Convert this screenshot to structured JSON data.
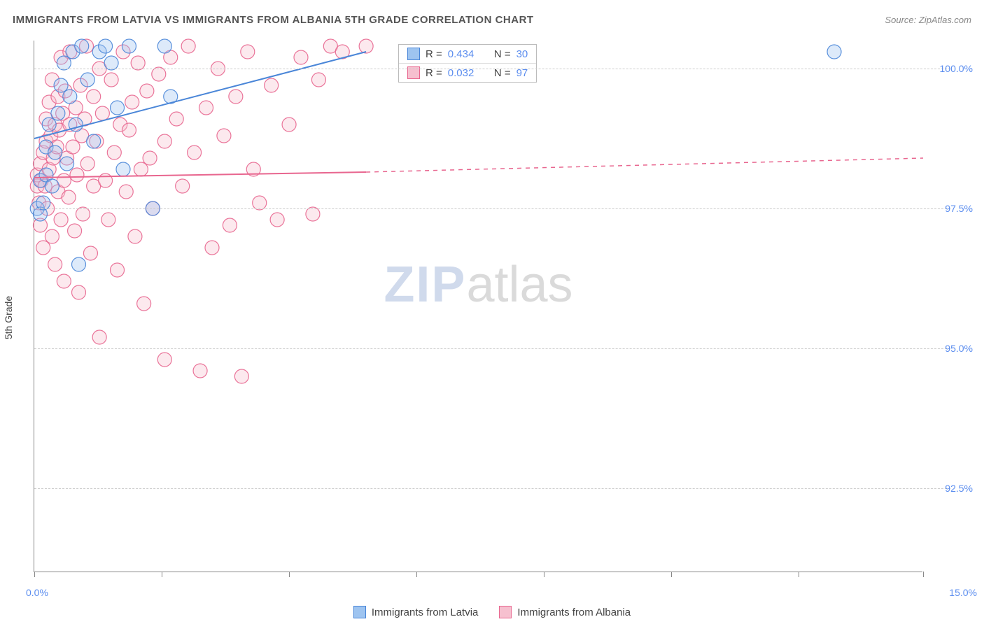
{
  "title": "IMMIGRANTS FROM LATVIA VS IMMIGRANTS FROM ALBANIA 5TH GRADE CORRELATION CHART",
  "source_prefix": "Source: ",
  "source_name": "ZipAtlas.com",
  "ylabel": "5th Grade",
  "watermark_bold": "ZIP",
  "watermark_light": "atlas",
  "chart": {
    "type": "scatter-with-regression",
    "xlim": [
      0.0,
      15.0
    ],
    "ylim": [
      91.0,
      100.5
    ],
    "background_color": "#ffffff",
    "grid_color": "#cccccc",
    "axis_color": "#888888",
    "yticks": [
      92.5,
      95.0,
      97.5,
      100.0
    ],
    "ytick_labels": [
      "92.5%",
      "95.0%",
      "97.5%",
      "100.0%"
    ],
    "ytick_color": "#5b8def",
    "xtick_positions": [
      0,
      2.15,
      4.3,
      6.45,
      8.6,
      10.75,
      12.9,
      15.0
    ],
    "xlabel_min": "0.0%",
    "xlabel_max": "15.0%",
    "xlabel_color": "#5b8def",
    "marker_radius": 10,
    "marker_fill_opacity": 0.35,
    "marker_stroke_opacity": 0.9,
    "marker_stroke_width": 1.2,
    "regression_line_width": 2
  },
  "series": {
    "latvia": {
      "label": "Immigrants from Latvia",
      "color_fill": "#9ec4f0",
      "color_stroke": "#4a86d8",
      "R": "0.434",
      "N": "30",
      "regression": {
        "x0": 0.0,
        "y0": 98.75,
        "x1": 5.6,
        "y1": 100.3,
        "dash_after_x": 15.0
      },
      "points": [
        [
          0.05,
          97.5
        ],
        [
          0.1,
          97.4
        ],
        [
          0.1,
          98.0
        ],
        [
          0.15,
          97.6
        ],
        [
          0.2,
          98.1
        ],
        [
          0.2,
          98.6
        ],
        [
          0.25,
          99.0
        ],
        [
          0.3,
          97.9
        ],
        [
          0.35,
          98.5
        ],
        [
          0.4,
          99.2
        ],
        [
          0.45,
          99.7
        ],
        [
          0.5,
          100.1
        ],
        [
          0.55,
          98.3
        ],
        [
          0.6,
          99.5
        ],
        [
          0.65,
          100.3
        ],
        [
          0.7,
          99.0
        ],
        [
          0.75,
          96.5
        ],
        [
          0.8,
          100.4
        ],
        [
          0.9,
          99.8
        ],
        [
          1.0,
          98.7
        ],
        [
          1.1,
          100.3
        ],
        [
          1.2,
          100.4
        ],
        [
          1.3,
          100.1
        ],
        [
          1.4,
          99.3
        ],
        [
          1.5,
          98.2
        ],
        [
          1.6,
          100.4
        ],
        [
          2.0,
          97.5
        ],
        [
          2.2,
          100.4
        ],
        [
          2.3,
          99.5
        ],
        [
          13.5,
          100.3
        ]
      ]
    },
    "albania": {
      "label": "Immigrants from Albania",
      "color_fill": "#f6c0cf",
      "color_stroke": "#e8668f",
      "R": "0.032",
      "N": "97",
      "regression": {
        "x0": 0.0,
        "y0": 98.05,
        "x1": 5.6,
        "y1": 98.15,
        "dash_after_x": 15.0,
        "dash_y_end": 98.4
      },
      "points": [
        [
          0.05,
          97.9
        ],
        [
          0.05,
          98.1
        ],
        [
          0.08,
          97.6
        ],
        [
          0.1,
          98.3
        ],
        [
          0.1,
          97.2
        ],
        [
          0.12,
          98.0
        ],
        [
          0.15,
          98.5
        ],
        [
          0.15,
          96.8
        ],
        [
          0.18,
          97.9
        ],
        [
          0.2,
          98.7
        ],
        [
          0.2,
          99.1
        ],
        [
          0.22,
          97.5
        ],
        [
          0.25,
          98.2
        ],
        [
          0.25,
          99.4
        ],
        [
          0.28,
          98.8
        ],
        [
          0.3,
          97.0
        ],
        [
          0.3,
          99.8
        ],
        [
          0.32,
          98.4
        ],
        [
          0.35,
          99.0
        ],
        [
          0.35,
          96.5
        ],
        [
          0.38,
          98.6
        ],
        [
          0.4,
          99.5
        ],
        [
          0.4,
          97.8
        ],
        [
          0.42,
          98.9
        ],
        [
          0.45,
          100.2
        ],
        [
          0.45,
          97.3
        ],
        [
          0.48,
          99.2
        ],
        [
          0.5,
          98.0
        ],
        [
          0.5,
          96.2
        ],
        [
          0.52,
          99.6
        ],
        [
          0.55,
          98.4
        ],
        [
          0.58,
          97.7
        ],
        [
          0.6,
          99.0
        ],
        [
          0.6,
          100.3
        ],
        [
          0.65,
          98.6
        ],
        [
          0.68,
          97.1
        ],
        [
          0.7,
          99.3
        ],
        [
          0.72,
          98.1
        ],
        [
          0.75,
          96.0
        ],
        [
          0.78,
          99.7
        ],
        [
          0.8,
          98.8
        ],
        [
          0.82,
          97.4
        ],
        [
          0.85,
          99.1
        ],
        [
          0.88,
          100.4
        ],
        [
          0.9,
          98.3
        ],
        [
          0.95,
          96.7
        ],
        [
          1.0,
          99.5
        ],
        [
          1.0,
          97.9
        ],
        [
          1.05,
          98.7
        ],
        [
          1.1,
          100.0
        ],
        [
          1.1,
          95.2
        ],
        [
          1.15,
          99.2
        ],
        [
          1.2,
          98.0
        ],
        [
          1.25,
          97.3
        ],
        [
          1.3,
          99.8
        ],
        [
          1.35,
          98.5
        ],
        [
          1.4,
          96.4
        ],
        [
          1.45,
          99.0
        ],
        [
          1.5,
          100.3
        ],
        [
          1.55,
          97.8
        ],
        [
          1.6,
          98.9
        ],
        [
          1.65,
          99.4
        ],
        [
          1.7,
          97.0
        ],
        [
          1.75,
          100.1
        ],
        [
          1.8,
          98.2
        ],
        [
          1.85,
          95.8
        ],
        [
          1.9,
          99.6
        ],
        [
          1.95,
          98.4
        ],
        [
          2.0,
          97.5
        ],
        [
          2.1,
          99.9
        ],
        [
          2.2,
          98.7
        ],
        [
          2.2,
          94.8
        ],
        [
          2.3,
          100.2
        ],
        [
          2.4,
          99.1
        ],
        [
          2.5,
          97.9
        ],
        [
          2.6,
          100.4
        ],
        [
          2.7,
          98.5
        ],
        [
          2.8,
          94.6
        ],
        [
          2.9,
          99.3
        ],
        [
          3.0,
          96.8
        ],
        [
          3.1,
          100.0
        ],
        [
          3.2,
          98.8
        ],
        [
          3.3,
          97.2
        ],
        [
          3.4,
          99.5
        ],
        [
          3.5,
          94.5
        ],
        [
          3.6,
          100.3
        ],
        [
          3.7,
          98.2
        ],
        [
          3.8,
          97.6
        ],
        [
          4.0,
          99.7
        ],
        [
          4.1,
          97.3
        ],
        [
          4.3,
          99.0
        ],
        [
          4.5,
          100.2
        ],
        [
          4.7,
          97.4
        ],
        [
          4.8,
          99.8
        ],
        [
          5.0,
          100.4
        ],
        [
          5.2,
          100.3
        ],
        [
          5.6,
          100.4
        ]
      ]
    }
  },
  "stat_labels": {
    "R": "R =",
    "N": "N ="
  },
  "legend_order": [
    "latvia",
    "albania"
  ]
}
